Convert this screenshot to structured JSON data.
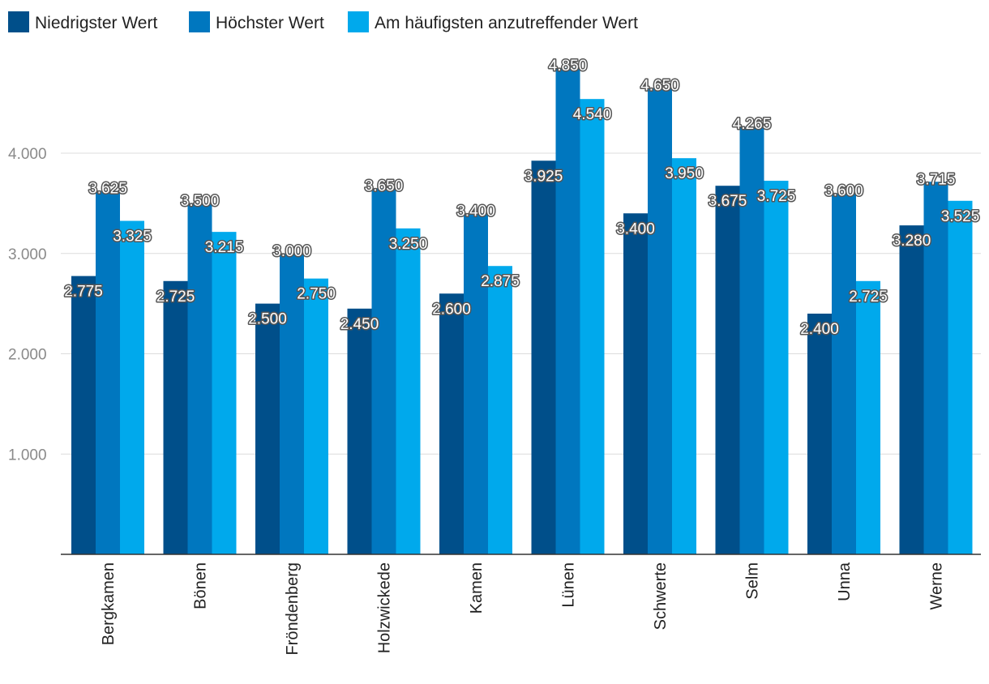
{
  "chart_data": {
    "type": "bar",
    "title": "",
    "xlabel": "",
    "ylabel": "",
    "ylim": [
      0,
      5000
    ],
    "yticks": [
      1000,
      2000,
      3000,
      4000
    ],
    "ytick_labels": [
      "1.000",
      "2.000",
      "3.000",
      "4.000"
    ],
    "grid": true,
    "legend_position": "top-left",
    "categories": [
      "Bergkamen",
      "Bönen",
      "Fröndenberg",
      "Holzwickede",
      "Kamen",
      "Lünen",
      "Schwerte",
      "Selm",
      "Unna",
      "Werne"
    ],
    "series": [
      {
        "name": "Niedrigster Wert",
        "color": "#004f8a",
        "values": [
          2775,
          2725,
          2500,
          2450,
          2600,
          3925,
          3400,
          3675,
          2400,
          3280
        ],
        "labels": [
          "2.775",
          "2.725",
          "2.500",
          "2.450",
          "2.600",
          "3.925",
          "3.400",
          "3.675",
          "2.400",
          "3.280"
        ]
      },
      {
        "name": "Höchster Wert",
        "color": "#0077bf",
        "values": [
          3625,
          3500,
          3000,
          3650,
          3400,
          4850,
          4650,
          4265,
          3600,
          3715
        ],
        "labels": [
          "3.625",
          "3.500",
          "3.000",
          "3.650",
          "3.400",
          "4.850",
          "4.650",
          "4.265",
          "3.600",
          "3.715"
        ]
      },
      {
        "name": "Am häufigsten anzutreffender Wert",
        "color": "#00a9ec",
        "values": [
          3325,
          3215,
          2750,
          3250,
          2875,
          4540,
          3950,
          3725,
          2725,
          3525
        ],
        "labels": [
          "3.325",
          "3.215",
          "2.750",
          "3.250",
          "2.875",
          "4.540",
          "3.950",
          "3.725",
          "2.725",
          "3.525"
        ]
      }
    ]
  }
}
